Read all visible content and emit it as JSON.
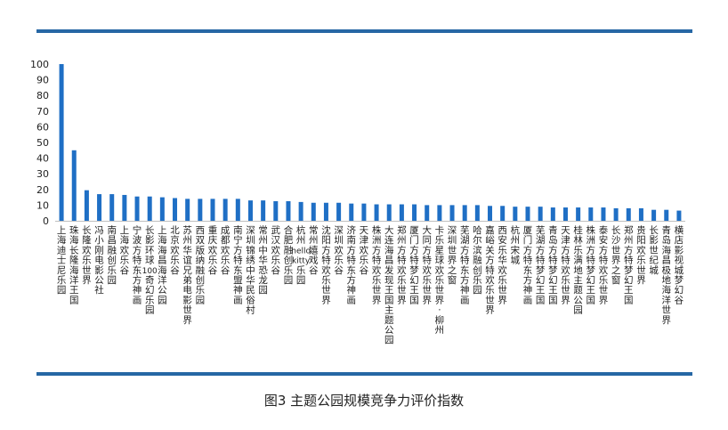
{
  "caption": "图3 主题公园规模竞争力评价指数",
  "colors": {
    "bar": "#1f6fc5",
    "rule": "#2667a4",
    "axis": "#bfbfbf"
  },
  "chart_data": {
    "type": "bar",
    "title": "",
    "xlabel": "",
    "ylabel": "",
    "ylim": [
      0,
      100
    ],
    "yticks": [
      0,
      10,
      20,
      30,
      40,
      50,
      60,
      70,
      80,
      90,
      100
    ],
    "grid": false,
    "categories": [
      "上海迪士尼乐园",
      "珠海长隆海洋王国",
      "长隆欢乐世界",
      "冯小刚电影公社",
      "南昌融创乐园",
      "上海欢乐谷",
      "宁波方特东方神画",
      "长影环球100奇幻乐园",
      "上海海昌海洋公园",
      "北京欢乐谷",
      "苏州华谊兄弟电影世界",
      "西双版纳融创乐园",
      "重庆欢乐谷",
      "成都欢乐谷",
      "南宁方特东盟神画",
      "深圳锦绣中华民俗村",
      "常州中华恐龙园",
      "武汉欢乐谷",
      "合肥融创乐园",
      "杭州hello kitty乐园",
      "常州嬉戏谷",
      "沈阳方特欢乐世界",
      "深圳欢乐谷",
      "济南方特东方神画",
      "天津欢乐谷",
      "株洲方特欢乐世界",
      "大连海昌发现王国主题公园",
      "郑州方特欢乐世界",
      "厦门方特梦幻王国",
      "大同方特欢乐世界",
      "卡乐星球欢乐世界·柳州",
      "深圳世界之窗",
      "芜湖方特东方神画",
      "哈尔滨融创乐园",
      "嘉峪关方特欢乐世界",
      "西安乐华欢乐世界",
      "杭州宋城",
      "厦门方特东方神画",
      "芜湖方特梦幻王国",
      "青岛方特梦幻王国",
      "天津方特欢乐世界",
      "桂林乐满地主题公园",
      "株洲方特梦幻王国",
      "泰安方特欢乐世界",
      "长沙世界之窗",
      "郑州方特梦幻王国",
      "贵阳欢乐世界",
      "长影世纪城",
      "青岛海昌极地海洋世界",
      "横店影视城梦幻谷"
    ],
    "values": [
      100,
      45,
      19.5,
      17,
      17,
      16.5,
      15.5,
      15.5,
      15,
      14.5,
      14,
      14,
      14,
      14,
      14,
      13,
      13,
      12.5,
      12.5,
      12,
      11.5,
      11.5,
      11.5,
      11,
      11,
      10.5,
      10.5,
      10.5,
      10.5,
      10,
      10,
      10,
      10,
      10,
      9.5,
      9.5,
      9,
      9,
      9,
      8.5,
      8.5,
      8.5,
      8.5,
      8.5,
      8,
      8,
      8,
      7,
      7,
      6.5
    ]
  }
}
